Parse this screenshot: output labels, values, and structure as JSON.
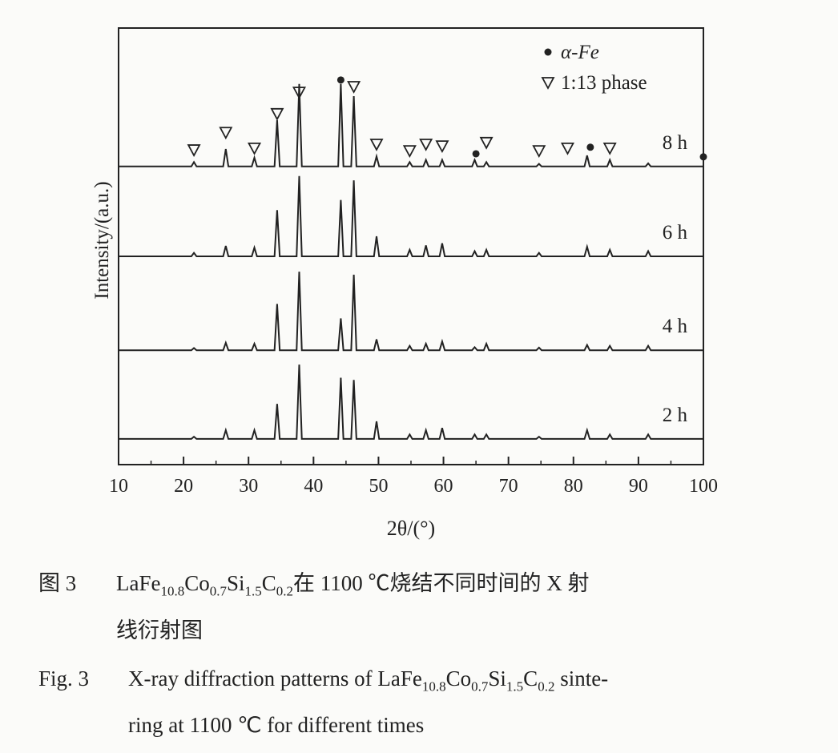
{
  "chart_data": {
    "type": "line",
    "xlabel": "2θ/(°)",
    "ylabel": "Intensity/(a.u.)",
    "xlim": [
      10,
      100
    ],
    "xticks": [
      10,
      20,
      30,
      40,
      50,
      60,
      70,
      80,
      90,
      100
    ],
    "xminorticks": [
      15,
      25,
      35,
      45,
      55,
      65,
      75,
      85,
      95
    ],
    "ylim": [
      0,
      100
    ],
    "x": [
      10,
      21.2,
      21.6,
      22.0,
      26.1,
      26.5,
      26.9,
      30.5,
      30.9,
      31.3,
      34.0,
      34.4,
      34.8,
      37.4,
      37.8,
      38.2,
      43.8,
      44.2,
      44.6,
      45.8,
      46.2,
      46.6,
      49.3,
      49.7,
      50.1,
      54.4,
      54.8,
      55.2,
      56.9,
      57.3,
      57.7,
      59.4,
      59.8,
      60.2,
      64.4,
      64.8,
      65.2,
      66.2,
      66.6,
      67.0,
      74.3,
      74.7,
      75.1,
      81.7,
      82.1,
      82.5,
      85.2,
      85.6,
      86.0,
      91.1,
      91.5,
      91.9,
      100
    ],
    "series": [
      {
        "name": "2 h",
        "color": "#222222",
        "values": [
          5.9,
          5.9,
          6.4,
          5.9,
          5.9,
          7.9,
          5.9,
          5.9,
          7.9,
          5.9,
          5.9,
          13.9,
          5.9,
          5.9,
          22.9,
          5.9,
          5.9,
          19.9,
          5.9,
          5.9,
          19.4,
          5.9,
          5.9,
          9.9,
          5.9,
          5.9,
          6.9,
          5.9,
          5.9,
          7.9,
          5.9,
          5.9,
          8.4,
          5.9,
          5.9,
          6.9,
          5.9,
          5.9,
          6.9,
          5.9,
          5.9,
          6.4,
          5.9,
          5.9,
          7.9,
          5.9,
          5.9,
          6.9,
          5.9,
          5.9,
          6.9,
          5.9,
          5.9
        ]
      },
      {
        "name": "4 h",
        "color": "#222222",
        "values": [
          26.2,
          26.2,
          26.7,
          26.2,
          26.2,
          27.9,
          26.2,
          26.2,
          27.7,
          26.2,
          26.2,
          36.8,
          26.2,
          26.2,
          44.2,
          26.2,
          26.2,
          33.5,
          26.2,
          26.2,
          43.5,
          26.2,
          26.2,
          28.7,
          26.2,
          26.2,
          27.2,
          26.2,
          26.2,
          27.7,
          26.2,
          26.2,
          28.2,
          26.2,
          26.2,
          26.9,
          26.2,
          26.2,
          27.7,
          26.2,
          26.2,
          26.8,
          26.2,
          26.2,
          27.4,
          26.2,
          26.2,
          27.2,
          26.2,
          26.2,
          27.2,
          26.2,
          26.2
        ]
      },
      {
        "name": "6 h",
        "color": "#222222",
        "values": [
          47.7,
          47.7,
          48.5,
          47.7,
          47.7,
          50.1,
          47.7,
          47.7,
          49.7,
          47.7,
          47.7,
          58.3,
          47.7,
          47.7,
          66.1,
          47.7,
          47.7,
          60.6,
          47.7,
          47.7,
          65.1,
          47.7,
          47.7,
          52.3,
          47.7,
          47.7,
          49.2,
          47.7,
          47.7,
          50.2,
          47.7,
          47.7,
          50.7,
          47.7,
          47.7,
          48.9,
          47.7,
          47.7,
          49.2,
          47.7,
          47.7,
          48.5,
          47.7,
          47.7,
          49.9,
          47.7,
          47.7,
          49.2,
          47.7,
          47.7,
          48.9,
          47.7,
          47.7
        ]
      },
      {
        "name": "8 h",
        "color": "#222222",
        "values": [
          68.3,
          68.3,
          69.3,
          68.3,
          68.3,
          72.3,
          68.3,
          68.3,
          70.3,
          68.3,
          68.3,
          78.9,
          68.3,
          68.3,
          87.2,
          68.3,
          68.3,
          87.2,
          68.3,
          68.3,
          84.4,
          68.3,
          68.3,
          70.6,
          68.3,
          68.3,
          69.3,
          68.3,
          68.3,
          69.8,
          68.3,
          68.3,
          69.8,
          68.3,
          68.3,
          69.8,
          68.3,
          68.3,
          69.3,
          68.3,
          68.3,
          68.9,
          68.3,
          68.3,
          70.8,
          68.3,
          68.3,
          69.8,
          68.3,
          68.3,
          69.0,
          68.3,
          68.3
        ]
      }
    ],
    "markers": [
      {
        "name": "α-Fe",
        "symbol": "dot",
        "x": [
          44.2,
          65,
          82.6,
          100
        ],
        "y": [
          88.1,
          71.2,
          72.7,
          70.5
        ]
      },
      {
        "name": "1:13 phase",
        "symbol": "triangle",
        "x": [
          21.6,
          26.5,
          30.9,
          34.4,
          37.8,
          46.2,
          49.7,
          54.8,
          57.3,
          59.8,
          66.6,
          74.7,
          79.1,
          85.6
        ],
        "y": [
          72.1,
          76.1,
          72.5,
          80.4,
          85.3,
          86.6,
          73.4,
          71.9,
          73.4,
          73.0,
          73.8,
          71.9,
          72.5,
          72.5
        ]
      }
    ],
    "legend": "upper right",
    "grid": false
  },
  "caption": {
    "formula": [
      {
        "el": "La"
      },
      {
        "el": "Fe",
        "sub": "10.8"
      },
      {
        "el": "Co",
        "sub": "0.7"
      },
      {
        "el": "Si",
        "sub": "1.5"
      },
      {
        "el": "C",
        "sub": "0.2"
      }
    ],
    "cn_label": "图 3",
    "cn_line1": "在 1100 ℃烧结不同时间的 X 射",
    "cn_line2": "线衍射图",
    "en_label": "Fig. 3",
    "en_before": "X-ray diffraction patterns of",
    "en_after": "sinte-",
    "en_line2": "ring at 1100 ℃ for different times"
  }
}
